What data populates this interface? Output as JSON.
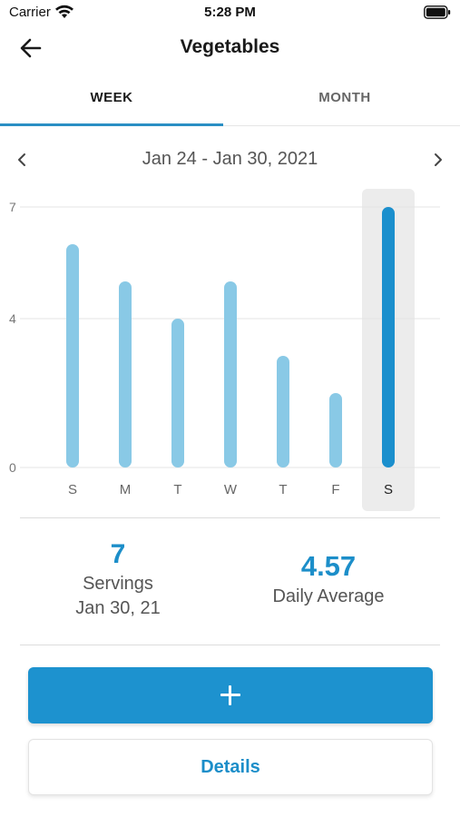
{
  "status_bar": {
    "carrier": "Carrier",
    "time": "5:28 PM"
  },
  "nav": {
    "title": "Vegetables",
    "back_icon": "arrow-left-icon"
  },
  "tabs": [
    {
      "label": "WEEK",
      "selected": true
    },
    {
      "label": "MONTH",
      "selected": false
    }
  ],
  "date_range": {
    "label": "Jan 24 - Jan 30, 2021",
    "prev_icon": "chevron-left-icon",
    "next_icon": "chevron-right-icon"
  },
  "chart_data": {
    "type": "bar",
    "categories": [
      "S",
      "M",
      "T",
      "W",
      "T",
      "F",
      "S"
    ],
    "values": [
      6,
      5,
      4,
      5,
      3,
      2,
      7
    ],
    "ylim": [
      0,
      7
    ],
    "yticks": [
      0,
      4,
      7
    ],
    "selected_index": 6,
    "grid": true,
    "title": "",
    "xlabel": "",
    "ylabel": ""
  },
  "colors": {
    "bar": "#89c9e6",
    "bar_selected": "#1b8fcd",
    "selected_bg": "#ececec",
    "accent": "#1c8ec9"
  },
  "stats": {
    "servings_value": "7",
    "servings_label": "Servings",
    "servings_date": "Jan 30, 21",
    "average_value": "4.57",
    "average_label": "Daily Average"
  },
  "buttons": {
    "add_icon": "plus-icon",
    "details_label": "Details"
  }
}
